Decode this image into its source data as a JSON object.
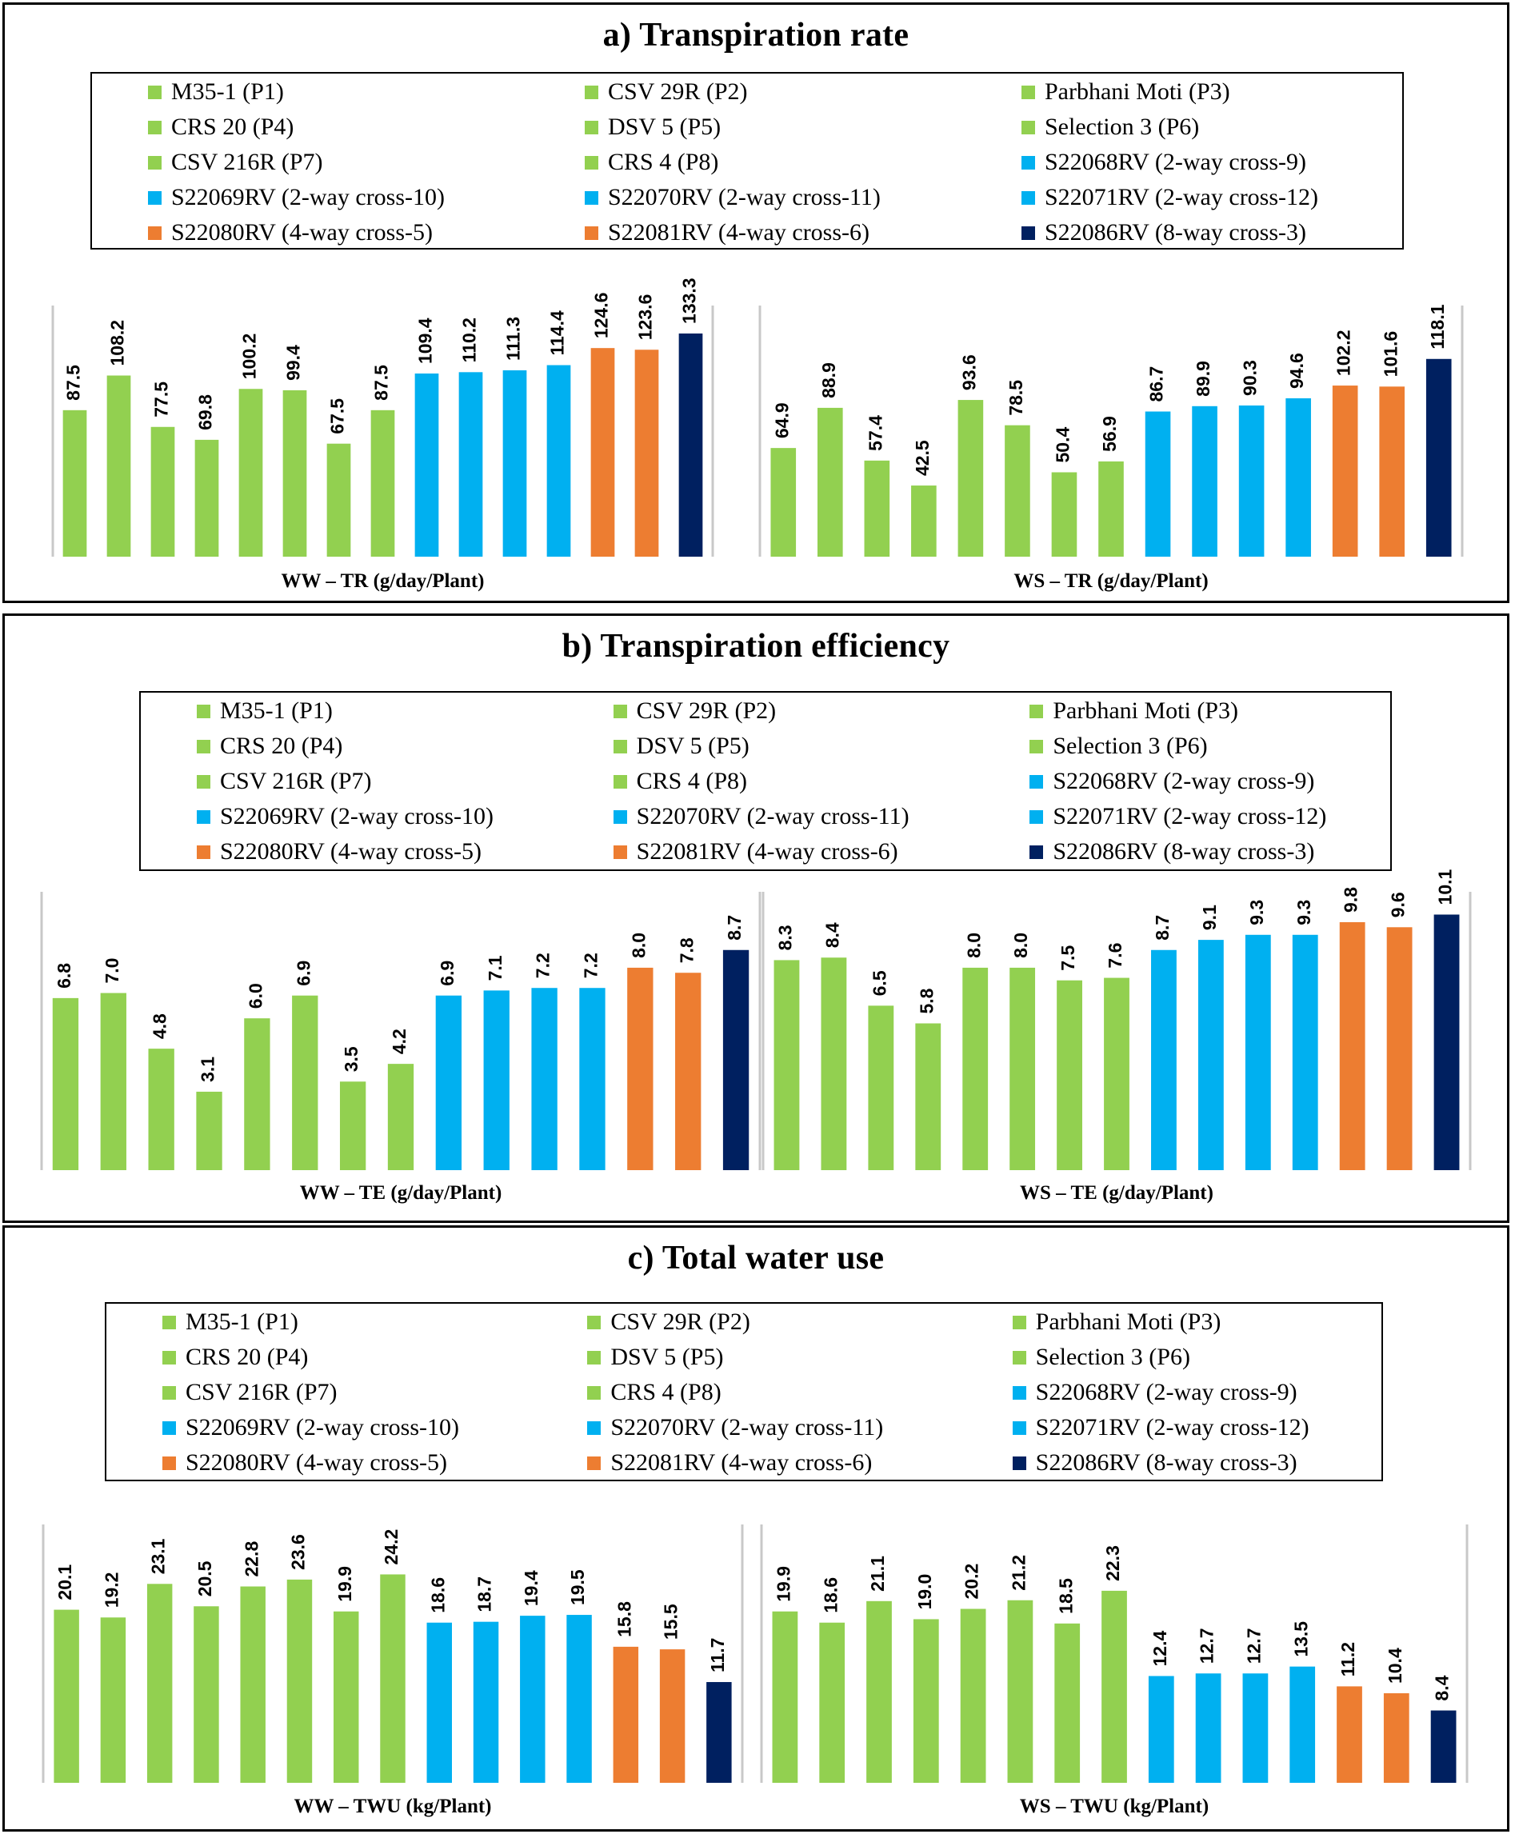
{
  "legend_items": [
    {
      "label": "M35-1 (P1)",
      "group": "parent"
    },
    {
      "label": "CSV 29R (P2)",
      "group": "parent"
    },
    {
      "label": "Parbhani Moti (P3)",
      "group": "parent"
    },
    {
      "label": "CRS 20 (P4)",
      "group": "parent"
    },
    {
      "label": "DSV 5 (P5)",
      "group": "parent"
    },
    {
      "label": "Selection 3 (P6)",
      "group": "parent"
    },
    {
      "label": "CSV 216R (P7)",
      "group": "parent"
    },
    {
      "label": "CRS 4 (P8)",
      "group": "parent"
    },
    {
      "label": "S22068RV (2-way cross-9)",
      "group": "two_way"
    },
    {
      "label": "S22069RV (2-way cross-10)",
      "group": "two_way"
    },
    {
      "label": "S22070RV (2-way cross-11)",
      "group": "two_way"
    },
    {
      "label": "S22071RV (2-way cross-12)",
      "group": "two_way"
    },
    {
      "label": "S22080RV (4-way cross-5)",
      "group": "four_way"
    },
    {
      "label": "S22081RV (4-way cross-6)",
      "group": "four_way"
    },
    {
      "label": "S22086RV (8-way cross-3)",
      "group": "eight_way"
    }
  ],
  "colors": {
    "parent": "#92d050",
    "two_way": "#00b0f0",
    "four_way": "#ed7d31",
    "eight_way": "#002060",
    "axis": "#c8c8c8"
  },
  "chart_data": [
    {
      "panel": "a",
      "type": "bar",
      "title": "a) Transpiration rate",
      "xlabel": "WW – TR (g/day/Plant)",
      "ylabel": "",
      "ylim": [
        0,
        150
      ],
      "categories_ref": "legend_items",
      "values": [
        87.5,
        108.2,
        77.5,
        69.8,
        100.2,
        99.4,
        67.5,
        87.5,
        109.4,
        110.2,
        111.3,
        114.4,
        124.6,
        123.6,
        133.3
      ],
      "value_labels": [
        "87.5",
        "108.2",
        "77.5",
        "69.8",
        "100.2",
        "99.4",
        "67.5",
        "87.5",
        "109.4",
        "110.2",
        "111.3",
        "114.4",
        "124.6",
        "123.6",
        "133.3"
      ]
    },
    {
      "panel": "a",
      "type": "bar",
      "title": "a) Transpiration rate",
      "xlabel": "WS – TR (g/day/Plant)",
      "ylabel": "",
      "ylim": [
        0,
        150
      ],
      "categories_ref": "legend_items",
      "values": [
        64.9,
        88.9,
        57.4,
        42.5,
        93.6,
        78.5,
        50.4,
        56.9,
        86.7,
        89.9,
        90.3,
        94.6,
        102.2,
        101.6,
        118.1
      ],
      "value_labels": [
        "64.9",
        "88.9",
        "57.4",
        "42.5",
        "93.6",
        "78.5",
        "50.4",
        "56.9",
        "86.7",
        "89.9",
        "90.3",
        "94.6",
        "102.2",
        "101.6",
        "118.1"
      ]
    },
    {
      "panel": "b",
      "type": "bar",
      "title": "b) Transpiration efficiency",
      "xlabel": "WW – TE (g/day/Plant)",
      "ylabel": "",
      "ylim": [
        0,
        11
      ],
      "categories_ref": "legend_items",
      "values": [
        6.8,
        7.0,
        4.8,
        3.1,
        6.0,
        6.9,
        3.5,
        4.2,
        6.9,
        7.1,
        7.2,
        7.2,
        8.0,
        7.8,
        8.7
      ],
      "value_labels": [
        "6.8",
        "7.0",
        "4.8",
        "3.1",
        "6.0",
        "6.9",
        "3.5",
        "4.2",
        "6.9",
        "7.1",
        "7.2",
        "7.2",
        "8.0",
        "7.8",
        "8.7"
      ]
    },
    {
      "panel": "b",
      "type": "bar",
      "title": "b) Transpiration efficiency",
      "xlabel": "WS – TE (g/day/Plant)",
      "ylabel": "",
      "ylim": [
        0,
        11
      ],
      "categories_ref": "legend_items",
      "values": [
        8.3,
        8.4,
        6.5,
        5.8,
        8.0,
        8.0,
        7.5,
        7.6,
        8.7,
        9.1,
        9.3,
        9.3,
        9.8,
        9.6,
        10.1
      ],
      "value_labels": [
        "8.3",
        "8.4",
        "6.5",
        "5.8",
        "8.0",
        "8.0",
        "7.5",
        "7.6",
        "8.7",
        "9.1",
        "9.3",
        "9.3",
        "9.8",
        "9.6",
        "10.1"
      ]
    },
    {
      "panel": "c",
      "type": "bar",
      "title": "c) Total water use",
      "xlabel": "WW – TWU (kg/Plant)",
      "ylabel": "",
      "ylim": [
        0,
        30
      ],
      "categories_ref": "legend_items",
      "values": [
        20.1,
        19.2,
        23.1,
        20.5,
        22.8,
        23.6,
        19.9,
        24.2,
        18.6,
        18.7,
        19.4,
        19.5,
        15.8,
        15.5,
        11.7
      ],
      "value_labels": [
        "20.1",
        "19.2",
        "23.1",
        "20.5",
        "22.8",
        "23.6",
        "19.9",
        "24.2",
        "18.6",
        "18.7",
        "19.4",
        "19.5",
        "15.8",
        "15.5",
        "11.7"
      ]
    },
    {
      "panel": "c",
      "type": "bar",
      "title": "c) Total water use",
      "xlabel": "WS – TWU (kg/Plant)",
      "ylabel": "",
      "ylim": [
        0,
        30
      ],
      "categories_ref": "legend_items",
      "values": [
        19.9,
        18.6,
        21.1,
        19.0,
        20.2,
        21.2,
        18.5,
        22.3,
        12.4,
        12.7,
        12.7,
        13.5,
        11.2,
        10.4,
        8.4
      ],
      "value_labels": [
        "19.9",
        "18.6",
        "21.1",
        "19.0",
        "20.2",
        "21.2",
        "18.5",
        "22.3",
        "12.4",
        "12.7",
        "12.7",
        "13.5",
        "11.2",
        "10.4",
        "8.4"
      ]
    }
  ],
  "panels": {
    "a": {
      "title": "a) Transpiration rate"
    },
    "b": {
      "title": "b) Transpiration efficiency"
    },
    "c": {
      "title": "c) Total water use"
    }
  }
}
